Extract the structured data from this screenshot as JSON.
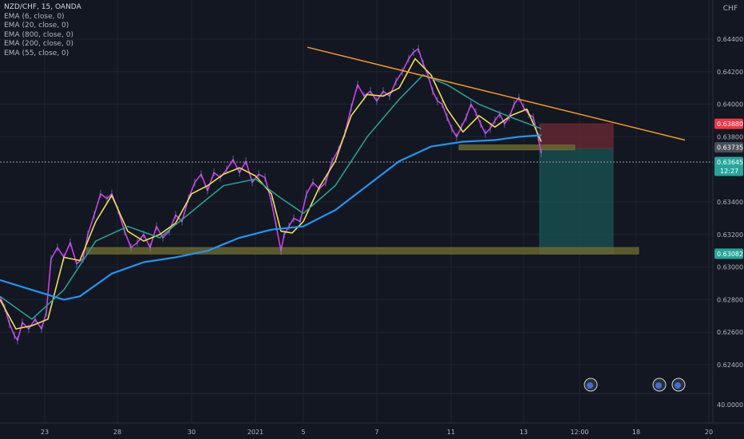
{
  "header": {
    "symbol_line": "NZD/CHF, 15, OANDA",
    "indicators": [
      "EMA (6, close, 0)",
      "EMA (20, close, 0)",
      "EMA (800, close, 0)",
      "EMA (200, close, 0)",
      "EMA (55, close, 0)"
    ],
    "currency": "CHF"
  },
  "colors": {
    "background": "#131722",
    "grid": "#1f2330",
    "axis_text": "#b2b5be",
    "price": "#d23cf0",
    "ema6": "#f0e14a",
    "ema20": "#2a9d8f",
    "ema200": "#2196f3",
    "trendline": "#f59a23",
    "zone": "#6b6a2e",
    "stop": "#6e2a33",
    "target": "#1a5454",
    "stop_tag": "#f23645",
    "zone_tag": "#4b4f5b",
    "last_tag": "#26a69a"
  },
  "chart_data": {
    "type": "line",
    "title": "NZD/CHF, 15, OANDA",
    "ylim": [
      0.6228,
      0.6446
    ],
    "y_ticks": [
      "0.64400",
      "0.64200",
      "0.64000",
      "0.63800",
      "0.63400",
      "0.63200",
      "0.63000",
      "0.62800",
      "0.62600",
      "0.62400"
    ],
    "volume_tick": "40.0000",
    "x_tick_labels": [
      "23",
      "28",
      "30",
      "2021",
      "5",
      "7",
      "11",
      "13",
      "12:00",
      "18",
      "20"
    ],
    "grid": true,
    "series": [
      {
        "name": "NZD/CHF",
        "style": "price",
        "x": [
          0,
          6,
          12,
          18,
          22,
          28,
          36,
          44,
          52,
          58,
          64,
          72,
          80,
          88,
          96,
          104,
          110,
          118,
          126,
          134,
          140,
          148,
          156,
          164,
          172,
          180,
          188,
          196,
          204,
          212,
          220,
          228,
          236,
          244,
          252,
          260,
          268,
          276,
          284,
          292,
          300,
          308,
          316,
          324,
          332,
          340,
          346,
          352,
          356,
          362,
          368,
          376,
          384,
          392,
          400,
          408,
          416,
          424,
          432,
          440,
          448,
          456,
          464,
          472,
          480,
          488,
          496,
          504,
          512,
          518,
          524,
          530,
          536,
          542,
          548,
          554,
          560,
          566,
          572,
          578,
          584,
          590,
          596,
          602,
          608,
          614,
          620,
          626,
          632,
          638,
          644,
          650,
          656,
          662,
          668,
          674,
          678
        ],
        "y": [
          0.6282,
          0.6275,
          0.6265,
          0.6258,
          0.6255,
          0.6266,
          0.6262,
          0.6268,
          0.6262,
          0.6272,
          0.6305,
          0.6312,
          0.6306,
          0.6315,
          0.6302,
          0.6305,
          0.632,
          0.6332,
          0.6345,
          0.6342,
          0.6345,
          0.6335,
          0.6322,
          0.6312,
          0.6315,
          0.632,
          0.6312,
          0.6325,
          0.6318,
          0.6322,
          0.6332,
          0.6328,
          0.6342,
          0.6352,
          0.6357,
          0.6347,
          0.6358,
          0.6355,
          0.636,
          0.6366,
          0.6358,
          0.6365,
          0.6352,
          0.6357,
          0.6355,
          0.634,
          0.6325,
          0.631,
          0.632,
          0.6325,
          0.633,
          0.6328,
          0.6345,
          0.6352,
          0.6348,
          0.6352,
          0.6365,
          0.6372,
          0.6382,
          0.6398,
          0.6412,
          0.6405,
          0.6408,
          0.6402,
          0.6408,
          0.6405,
          0.6414,
          0.642,
          0.6428,
          0.6432,
          0.6434,
          0.6425,
          0.6418,
          0.6408,
          0.6402,
          0.64,
          0.6392,
          0.6385,
          0.638,
          0.6386,
          0.6392,
          0.64,
          0.6395,
          0.6388,
          0.6382,
          0.6385,
          0.639,
          0.6394,
          0.6388,
          0.6392,
          0.64,
          0.6404,
          0.6398,
          0.6394,
          0.6392,
          0.638,
          0.637
        ]
      },
      {
        "name": "EMA (6, close, 0)",
        "style": "ema6",
        "x": [
          0,
          20,
          40,
          60,
          80,
          100,
          120,
          140,
          160,
          180,
          200,
          220,
          240,
          260,
          280,
          300,
          320,
          340,
          352,
          366,
          380,
          400,
          420,
          440,
          460,
          480,
          500,
          520,
          540,
          560,
          580,
          600,
          620,
          640,
          660,
          678
        ],
        "y": [
          0.628,
          0.6262,
          0.6264,
          0.6268,
          0.6306,
          0.6304,
          0.6328,
          0.6344,
          0.6322,
          0.6316,
          0.632,
          0.6327,
          0.6345,
          0.635,
          0.6357,
          0.6361,
          0.6356,
          0.6345,
          0.6322,
          0.6321,
          0.6328,
          0.6349,
          0.6365,
          0.6393,
          0.6406,
          0.6405,
          0.641,
          0.6428,
          0.6418,
          0.6397,
          0.6383,
          0.6393,
          0.6386,
          0.6393,
          0.6397,
          0.6377
        ]
      },
      {
        "name": "EMA (20, close, 0)",
        "style": "ema20",
        "x": [
          0,
          40,
          80,
          120,
          160,
          200,
          240,
          280,
          320,
          350,
          380,
          420,
          460,
          500,
          530,
          560,
          600,
          640,
          678
        ],
        "y": [
          0.6282,
          0.6268,
          0.6286,
          0.6316,
          0.6325,
          0.6318,
          0.6334,
          0.635,
          0.6354,
          0.6343,
          0.6333,
          0.635,
          0.638,
          0.6403,
          0.6418,
          0.6412,
          0.64,
          0.6392,
          0.6385
        ]
      },
      {
        "name": "EMA (200, close, 0)",
        "style": "ema200",
        "x": [
          0,
          40,
          80,
          100,
          140,
          180,
          220,
          260,
          300,
          340,
          380,
          420,
          460,
          500,
          540,
          580,
          620,
          650,
          678
        ],
        "y": [
          0.6292,
          0.6286,
          0.628,
          0.6282,
          0.6296,
          0.6303,
          0.6306,
          0.631,
          0.6318,
          0.6323,
          0.6325,
          0.6335,
          0.635,
          0.6365,
          0.6374,
          0.6377,
          0.6378,
          0.638,
          0.6381
        ]
      }
    ],
    "annotations": {
      "trendline": {
        "x": [
          385,
          858
        ],
        "y": [
          0.6435,
          0.6378
        ]
      },
      "support_zone": {
        "x": [
          108,
          800
        ],
        "y": [
          0.6312,
          0.6308
        ]
      },
      "retest_zone": {
        "x": [
          575,
          720
        ],
        "y": [
          0.6375,
          0.6372
        ]
      },
      "stop_box": {
        "x": [
          676,
          768
        ],
        "y": [
          0.6388,
          0.6373
        ]
      },
      "target_box": {
        "x": [
          676,
          768
        ],
        "y": [
          0.6373,
          0.6308
        ]
      },
      "last_price_line": 0.63645
    },
    "price_tags": [
      {
        "label": "0.63880",
        "value": 0.6388,
        "style": "stop_tag"
      },
      {
        "label": "0.63735",
        "value": 0.63735,
        "style": "zone_tag"
      },
      {
        "label": "0.63645",
        "value": 0.63645,
        "style": "last_tag",
        "sub": "12:27"
      },
      {
        "label": "0.63082",
        "value": 0.63082,
        "style": "last_tag"
      }
    ]
  }
}
